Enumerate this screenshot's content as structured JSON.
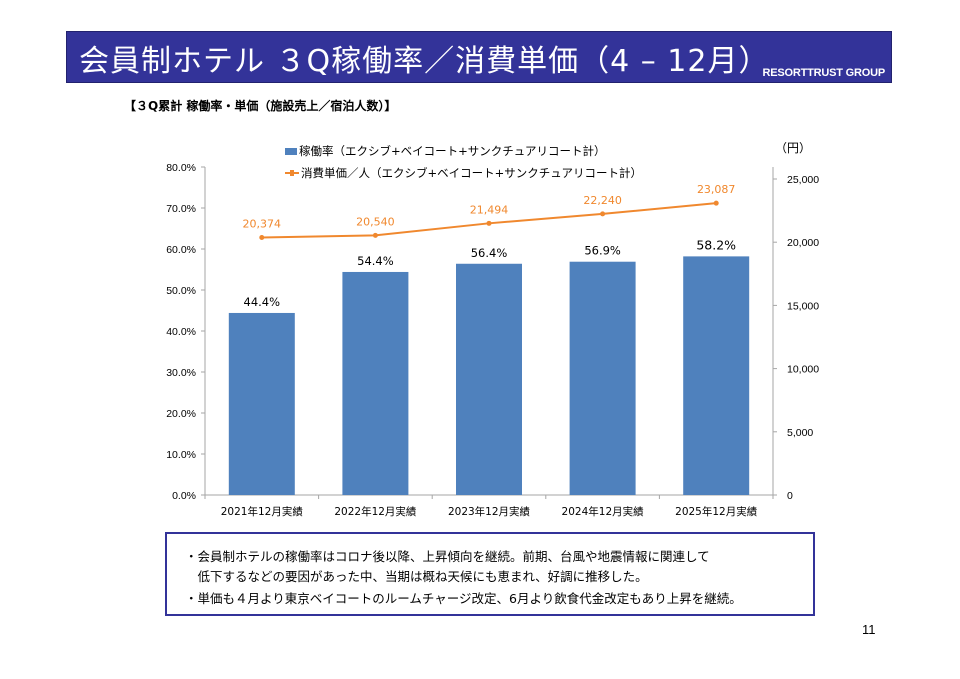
{
  "header": {
    "title": "会員制ホテル ３Q稼働率／消費単価（4 – 12月）",
    "brand": "RESORTTRUST GROUP"
  },
  "subtitle": "【３Q累計 稼働率・単価（施設売上／宿泊人数）】",
  "legend": {
    "bar": "稼働率（エクシブ+ベイコート+サンクチュアリコート計）",
    "line": "消費単価／人（エクシブ+ベイコート+サンクチュアリコート計）"
  },
  "right_axis_unit": "（円）",
  "notes": [
    "・会員制ホテルの稼働率はコロナ後以降、上昇傾向を継続。前期、台風や地震情報に関連して",
    "　低下するなどの要因があった中、当期は概ね天候にも恵まれ、好調に推移した。",
    "・単価も４月より東京ベイコートのルームチャージ改定、6月より飲食代金改定もあり上昇を継続。"
  ],
  "page_number": "11",
  "colors": {
    "title_bg": "#333399",
    "bar": "#4f81bd",
    "line": "#f0882e"
  },
  "chart_data": {
    "type": "bar",
    "categories": [
      "2021年12月実績",
      "2022年12月実績",
      "2023年12月実績",
      "2024年12月実績",
      "2025年12月実績"
    ],
    "series": [
      {
        "name": "稼働率（エクシブ+ベイコート+サンクチュアリコート計）",
        "type": "bar",
        "axis": "left",
        "values": [
          44.4,
          54.4,
          56.4,
          56.9,
          58.2
        ],
        "labels": [
          "44.4%",
          "54.4%",
          "56.4%",
          "56.9%",
          "58.2%"
        ]
      },
      {
        "name": "消費単価／人（エクシブ+ベイコート+サンクチュアリコート計）",
        "type": "line",
        "axis": "right",
        "values": [
          20374,
          20540,
          21494,
          22240,
          23087
        ],
        "labels": [
          "20,374",
          "20,540",
          "21,494",
          "22,240",
          "23,087"
        ]
      }
    ],
    "left_axis": {
      "min": 0,
      "max": 80,
      "step": 10,
      "ticks": [
        "0.0%",
        "10.0%",
        "20.0%",
        "30.0%",
        "40.0%",
        "50.0%",
        "60.0%",
        "70.0%",
        "80.0%"
      ]
    },
    "right_axis": {
      "min": 0,
      "max": 26000,
      "unit": "（円）",
      "ticks_values": [
        0,
        5000,
        10000,
        15000,
        20000,
        25000
      ],
      "ticks": [
        "0",
        "5,000",
        "10,000",
        "15,000",
        "20,000",
        "25,000"
      ]
    },
    "grid": false,
    "legend_position": "top-center"
  }
}
